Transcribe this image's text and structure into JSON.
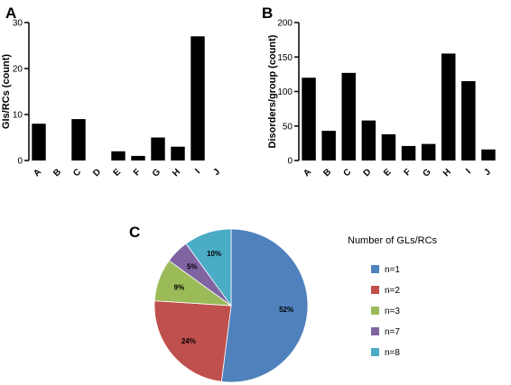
{
  "chart_data": [
    {
      "panel": "A",
      "type": "bar",
      "categories": [
        "A",
        "B",
        "C",
        "D",
        "E",
        "F",
        "G",
        "H",
        "I",
        "J"
      ],
      "values": [
        8,
        0,
        9,
        0,
        2,
        1,
        5,
        3,
        27,
        0
      ],
      "ylabel": "GIs/RCs (count)",
      "ylim": [
        0,
        30
      ],
      "yticks": [
        0,
        10,
        20,
        30
      ],
      "bar_color": "#000000"
    },
    {
      "panel": "B",
      "type": "bar",
      "categories": [
        "A",
        "B",
        "C",
        "D",
        "E",
        "F",
        "G",
        "H",
        "I",
        "J"
      ],
      "values": [
        120,
        43,
        127,
        58,
        38,
        21,
        24,
        155,
        115,
        16
      ],
      "ylabel": "Disorders/group (count)",
      "ylim": [
        0,
        200
      ],
      "yticks": [
        0,
        50,
        100,
        150,
        200
      ],
      "bar_color": "#000000"
    },
    {
      "panel": "C",
      "type": "pie",
      "legend_title": "Number of GLs/RCs",
      "legend_placement": "right",
      "slices": [
        {
          "label": "n=1",
          "value": 52,
          "pct_label": "52%",
          "color": "#4f81bd"
        },
        {
          "label": "n=2",
          "value": 24,
          "pct_label": "24%",
          "color": "#c0504d"
        },
        {
          "label": "n=3",
          "value": 9,
          "pct_label": "9%",
          "color": "#9bbb59"
        },
        {
          "label": "n=7",
          "value": 5,
          "pct_label": "5%",
          "color": "#8064a2"
        },
        {
          "label": "n=8",
          "value": 10,
          "pct_label": "10%",
          "color": "#4bacc6"
        }
      ]
    }
  ]
}
